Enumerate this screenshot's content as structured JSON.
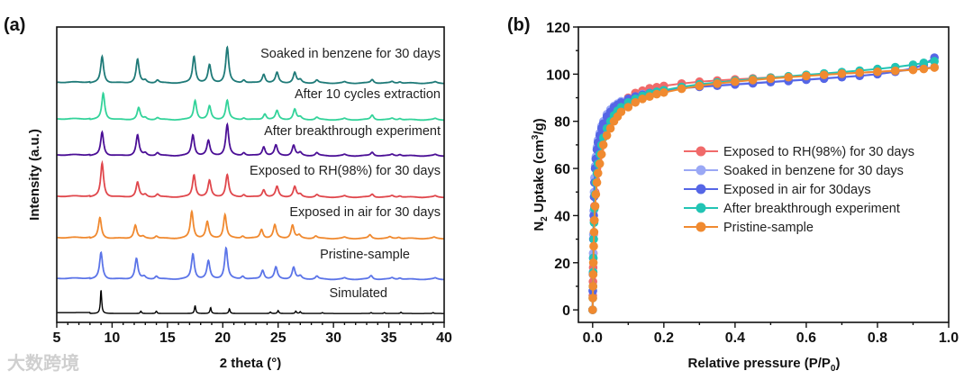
{
  "watermark": "大数跨境",
  "chart_data": [
    {
      "type": "line",
      "panel_label": "(a)",
      "title": "",
      "xlabel": "2 theta (°)",
      "ylabel": "Intensity (a.u.)",
      "xlim": [
        5,
        40
      ],
      "ylim": [
        0,
        100
      ],
      "xticks": [
        "5",
        "10",
        "15",
        "20",
        "25",
        "30",
        "35",
        "40"
      ],
      "xtick_values": [
        5,
        10,
        15,
        20,
        25,
        30,
        35,
        40
      ],
      "peak_width": 0.16,
      "series": [
        {
          "name": "Soaked in benzene for 30 days",
          "color": "#1f7a78",
          "offset": 81,
          "scale": 1.0,
          "peaks": [
            [
              9.1,
              9
            ],
            [
              12.3,
              8
            ],
            [
              13.0,
              0.8
            ],
            [
              14.1,
              1
            ],
            [
              17.4,
              9
            ],
            [
              18.8,
              6
            ],
            [
              20.4,
              12
            ],
            [
              21.9,
              1
            ],
            [
              23.7,
              3
            ],
            [
              24.9,
              3.5
            ],
            [
              26.5,
              3.5
            ],
            [
              27.0,
              1
            ],
            [
              28.5,
              1
            ],
            [
              31,
              0.4
            ],
            [
              33.5,
              1.2
            ],
            [
              35.3,
              0.5
            ],
            [
              36,
              0.5
            ],
            [
              39.2,
              0.4
            ]
          ]
        },
        {
          "name": "After 10 cycles extraction",
          "color": "#33d39a",
          "offset": 68.6,
          "scale": 1.0,
          "peaks": [
            [
              9.2,
              9
            ],
            [
              12.4,
              4
            ],
            [
              13.0,
              0.6
            ],
            [
              14.1,
              0.7
            ],
            [
              17.5,
              6.5
            ],
            [
              18.8,
              4.5
            ],
            [
              20.4,
              6.5
            ],
            [
              21.9,
              0.6
            ],
            [
              23.8,
              2
            ],
            [
              24.9,
              3
            ],
            [
              26.5,
              3.5
            ],
            [
              27.0,
              0.8
            ],
            [
              28.5,
              0.8
            ],
            [
              31,
              0.4
            ],
            [
              33.5,
              1.6
            ],
            [
              35.3,
              0.5
            ],
            [
              36,
              0.5
            ],
            [
              39.2,
              0.4
            ]
          ]
        },
        {
          "name": "After breakthrough experiment",
          "color": "#4b0f96",
          "offset": 56.4,
          "scale": 1.0,
          "peaks": [
            [
              9.1,
              8
            ],
            [
              12.3,
              7
            ],
            [
              13.0,
              0.8
            ],
            [
              14.1,
              1
            ],
            [
              17.3,
              7
            ],
            [
              18.7,
              5
            ],
            [
              20.4,
              10.5
            ],
            [
              21.9,
              1
            ],
            [
              23.7,
              3
            ],
            [
              24.8,
              3.5
            ],
            [
              26.4,
              3.5
            ],
            [
              27.0,
              1
            ],
            [
              28.5,
              1
            ],
            [
              31,
              0.4
            ],
            [
              33.5,
              1.2
            ],
            [
              35.3,
              0.5
            ],
            [
              36,
              0.5
            ],
            [
              39.2,
              0.4
            ]
          ]
        },
        {
          "name": "Exposed to RH(98%) for 30 days",
          "color": "#e0474c",
          "offset": 42.4,
          "scale": 1.0,
          "peaks": [
            [
              9.1,
              11.5
            ],
            [
              12.3,
              5
            ],
            [
              13.0,
              0.8
            ],
            [
              14.1,
              1
            ],
            [
              17.4,
              7.5
            ],
            [
              18.8,
              5.5
            ],
            [
              20.4,
              7.5
            ],
            [
              21.9,
              0.8
            ],
            [
              23.7,
              2.5
            ],
            [
              24.9,
              3.5
            ],
            [
              26.5,
              3.5
            ],
            [
              27.0,
              0.8
            ],
            [
              28.5,
              0.8
            ],
            [
              31,
              0.4
            ],
            [
              33.5,
              1
            ],
            [
              35.3,
              0.5
            ],
            [
              36,
              0.5
            ],
            [
              39.2,
              0.4
            ]
          ]
        },
        {
          "name": "Exposed in air for 30 days",
          "color": "#f0892f",
          "offset": 28.4,
          "scale": 1.0,
          "peaks": [
            [
              8.9,
              7
            ],
            [
              12.1,
              4.5
            ],
            [
              12.8,
              0.6
            ],
            [
              14.0,
              0.8
            ],
            [
              17.2,
              9
            ],
            [
              18.6,
              5.5
            ],
            [
              20.2,
              8
            ],
            [
              21.8,
              0.8
            ],
            [
              23.5,
              3
            ],
            [
              24.7,
              4.5
            ],
            [
              26.3,
              4.5
            ],
            [
              26.9,
              1
            ],
            [
              28.4,
              0.8
            ],
            [
              31,
              0.4
            ],
            [
              33.3,
              1.2
            ],
            [
              35.1,
              0.5
            ],
            [
              35.9,
              0.5
            ],
            [
              39.1,
              0.4
            ]
          ]
        },
        {
          "name": "Pristine-sample",
          "color": "#5b74e8",
          "offset": 14.6,
          "scale": 1.0,
          "peaks": [
            [
              9.0,
              9
            ],
            [
              12.2,
              7
            ],
            [
              12.9,
              0.8
            ],
            [
              14.0,
              1
            ],
            [
              17.3,
              8.5
            ],
            [
              18.7,
              6
            ],
            [
              20.3,
              10.5
            ],
            [
              21.8,
              1
            ],
            [
              23.6,
              3
            ],
            [
              24.8,
              4
            ],
            [
              26.4,
              4
            ],
            [
              27.0,
              1
            ],
            [
              28.5,
              1
            ],
            [
              31,
              0.4
            ],
            [
              33.4,
              1.2
            ],
            [
              35.3,
              0.5
            ],
            [
              36,
              0.5
            ],
            [
              39.2,
              0.4
            ]
          ]
        },
        {
          "name": "Simulated",
          "color": "#000000",
          "offset": 3,
          "scale": 1.0,
          "sharp": true,
          "peaks": [
            [
              9.0,
              8
            ],
            [
              12.6,
              0.8
            ],
            [
              14.0,
              0.8
            ],
            [
              17.5,
              2.7
            ],
            [
              18.9,
              2
            ],
            [
              20.6,
              1.6
            ],
            [
              24.3,
              0.5
            ],
            [
              25.0,
              1
            ],
            [
              26.6,
              0.8
            ],
            [
              27.0,
              0.6
            ],
            [
              29.0,
              0.3
            ],
            [
              33.4,
              0.3
            ],
            [
              34.6,
              0.3
            ],
            [
              36.1,
              0.4
            ],
            [
              39.0,
              0.3
            ]
          ]
        }
      ]
    },
    {
      "type": "scatter",
      "panel_label": "(b)",
      "title": "",
      "xlabel": "Relative pressure (P/P",
      "xlabel_sub": "0",
      "xlabel_end": ")",
      "ylabel_pre": "N",
      "ylabel_sub": "2",
      "ylabel_mid": " Uptake (cm",
      "ylabel_sup": "3",
      "ylabel_end": "/g)",
      "xlim": [
        -0.04,
        1.0
      ],
      "ylim": [
        -5.3,
        120
      ],
      "xticks": [
        "0.0",
        "0.2",
        "0.4",
        "0.6",
        "0.8",
        "1.0"
      ],
      "xtick_values": [
        0,
        0.2,
        0.4,
        0.6,
        0.8,
        1.0
      ],
      "yticks": [
        "0",
        "20",
        "40",
        "60",
        "80",
        "100",
        "120"
      ],
      "ytick_values": [
        0,
        20,
        40,
        60,
        80,
        100,
        120
      ],
      "legend_position": "center-right",
      "x": [
        0.0,
        0.0005,
        0.001,
        0.0015,
        0.002,
        0.003,
        0.004,
        0.005,
        0.007,
        0.009,
        0.012,
        0.015,
        0.02,
        0.025,
        0.03,
        0.04,
        0.05,
        0.06,
        0.07,
        0.08,
        0.1,
        0.12,
        0.14,
        0.16,
        0.18,
        0.2,
        0.25,
        0.3,
        0.35,
        0.4,
        0.45,
        0.5,
        0.55,
        0.6,
        0.65,
        0.7,
        0.75,
        0.8,
        0.85,
        0.9,
        0.93,
        0.96
      ],
      "series": [
        {
          "name": "Exposed to RH(98%) for 30 days",
          "color": "#f06a6a",
          "values": [
            0,
            6,
            12,
            18,
            24,
            32,
            38,
            44,
            50,
            55,
            60,
            64,
            68,
            72,
            75,
            79,
            82,
            85,
            87,
            88,
            90,
            92,
            93,
            94,
            94.5,
            95,
            96,
            96.8,
            97.3,
            97.8,
            98.2,
            98.6,
            99,
            99.4,
            99.8,
            100.2,
            100.6,
            101,
            101.5,
            102,
            102.5,
            103
          ]
        },
        {
          "name": "Soaked in benzene for 30 days",
          "color": "#9aa8f5",
          "values": [
            0,
            8,
            16,
            24,
            32,
            42,
            50,
            56,
            61,
            65,
            69,
            72,
            75,
            78,
            80,
            83,
            85,
            86.5,
            87.5,
            88.5,
            89.5,
            90.5,
            91.5,
            92,
            92.5,
            93,
            94,
            94.8,
            95.3,
            95.8,
            96.3,
            96.8,
            97.3,
            97.8,
            98.3,
            98.8,
            99.3,
            100,
            101,
            102,
            102.5,
            103
          ]
        },
        {
          "name": "Exposed in air for 30days",
          "color": "#5566e6",
          "values": [
            0,
            8,
            15,
            22,
            30,
            40,
            48,
            54,
            60,
            64,
            68,
            71,
            74,
            77,
            79,
            82,
            84,
            86,
            87,
            88,
            89.5,
            90.5,
            91.3,
            92,
            92.5,
            93,
            94,
            94.6,
            95.1,
            95.6,
            96.1,
            96.6,
            97.1,
            97.6,
            98.1,
            98.7,
            99.3,
            100,
            101,
            102.5,
            104,
            107
          ]
        },
        {
          "name": "After breakthrough experiment",
          "color": "#22c4b4",
          "values": [
            0,
            5,
            10,
            16,
            22,
            30,
            37,
            43,
            49,
            54,
            58,
            62,
            66,
            70,
            73,
            77,
            80,
            82.5,
            84.5,
            86,
            88,
            89.5,
            90.8,
            91.8,
            92.5,
            93.2,
            94.6,
            95.7,
            96.5,
            97.2,
            97.9,
            98.5,
            99.1,
            99.7,
            100.3,
            100.9,
            101.5,
            102.2,
            103,
            104,
            104.8,
            105.5
          ]
        },
        {
          "name": "Pristine-sample",
          "color": "#f08a30",
          "values": [
            0,
            5,
            10,
            15,
            20,
            27,
            33,
            38,
            44,
            49,
            54,
            58,
            62,
            66,
            70,
            74,
            77,
            80,
            82,
            84,
            86,
            88,
            89.5,
            90.5,
            91.5,
            92.2,
            93.8,
            95,
            96,
            96.8,
            97.5,
            98.1,
            98.7,
            99.2,
            99.7,
            100.2,
            100.6,
            101,
            101.4,
            101.8,
            102.2,
            102.8
          ]
        }
      ]
    }
  ]
}
